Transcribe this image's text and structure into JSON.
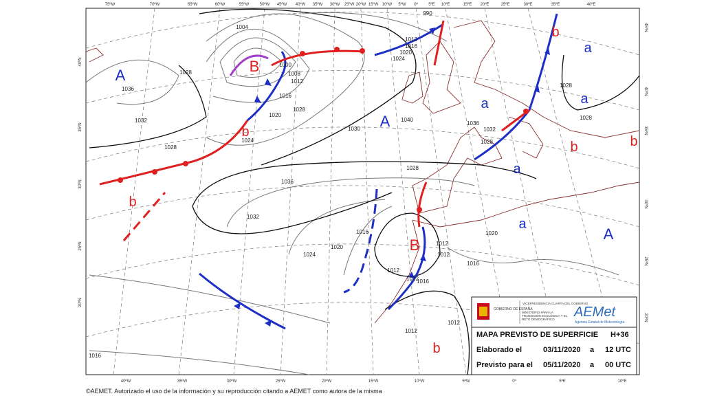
{
  "map": {
    "longitude_labels_top": [
      "75ºW",
      "70ºW",
      "65ºW",
      "60ºW",
      "55ºW",
      "50ºW",
      "45ºW",
      "40ºW",
      "35ºW",
      "30ºW",
      "25ºW",
      "20ºW",
      "15ºW",
      "10ºW",
      "5ºW",
      "0º",
      "5ºE",
      "10ºE",
      "15ºE",
      "20ºE",
      "25ºE",
      "30ºE",
      "35ºE",
      "40ºE"
    ],
    "longitude_labels_bottom": [
      "40ºW",
      "35ºW",
      "30ºW",
      "25ºW",
      "20ºW",
      "15ºW",
      "10ºW",
      "5ºW",
      "0º",
      "5ºE",
      "10ºE"
    ],
    "latitude_labels_left": [
      "40ºN",
      "35ºN",
      "30ºN",
      "25ºN",
      "20ºN"
    ],
    "latitude_labels_right": [
      "45ºN",
      "40ºN",
      "35ºN",
      "30ºN",
      "25ºN",
      "20ºN"
    ],
    "pressure_centers": [
      "A",
      "B",
      "b",
      "a",
      "b",
      "a",
      "A",
      "a",
      "b",
      "b",
      "a",
      "b",
      "a",
      "A",
      "B",
      "b"
    ],
    "isobar_labels": [
      "1028",
      "1036",
      "1032",
      "1028",
      "1004",
      "1008",
      "1012",
      "1016",
      "1020",
      "1024",
      "1028",
      "1036",
      "1032",
      "1028",
      "1040",
      "1036",
      "1032",
      "1028",
      "1020",
      "1024",
      "1016",
      "1012",
      "1012",
      "1012",
      "1016",
      "1012",
      "1012",
      "1012",
      "1016",
      "1020",
      "1016",
      "1028",
      "1028",
      "1012",
      "1016",
      "1020",
      "1024",
      "1030",
      "990",
      "1000"
    ]
  },
  "info_box": {
    "government": "GOBIERNO DE ESPAÑA",
    "vicepresidency": "VICEPRESIDENCIA CUARTA DEL GOBIERNO",
    "ministry": "MINISTERIO PARA LA TRANSICIÓN ECOLÓGICA Y EL RETO DEMOGRÁFICO",
    "agency_logo": "AEMet",
    "agency_name": "Agencia Estatal de Meteorología",
    "title": "MAPA PREVISTO DE SUPERFICIE",
    "forecast_hour": "H+36",
    "rows": [
      [
        "Elaborado el",
        "03/11/2020",
        "a",
        "12 UTC"
      ],
      [
        "Previsto para el",
        "05/11/2020",
        "a",
        "00 UTC"
      ]
    ]
  },
  "copyright": "©AEMET. Autorizado el uso de la información y su reproducción citando a AEMET como autora de la misma"
}
